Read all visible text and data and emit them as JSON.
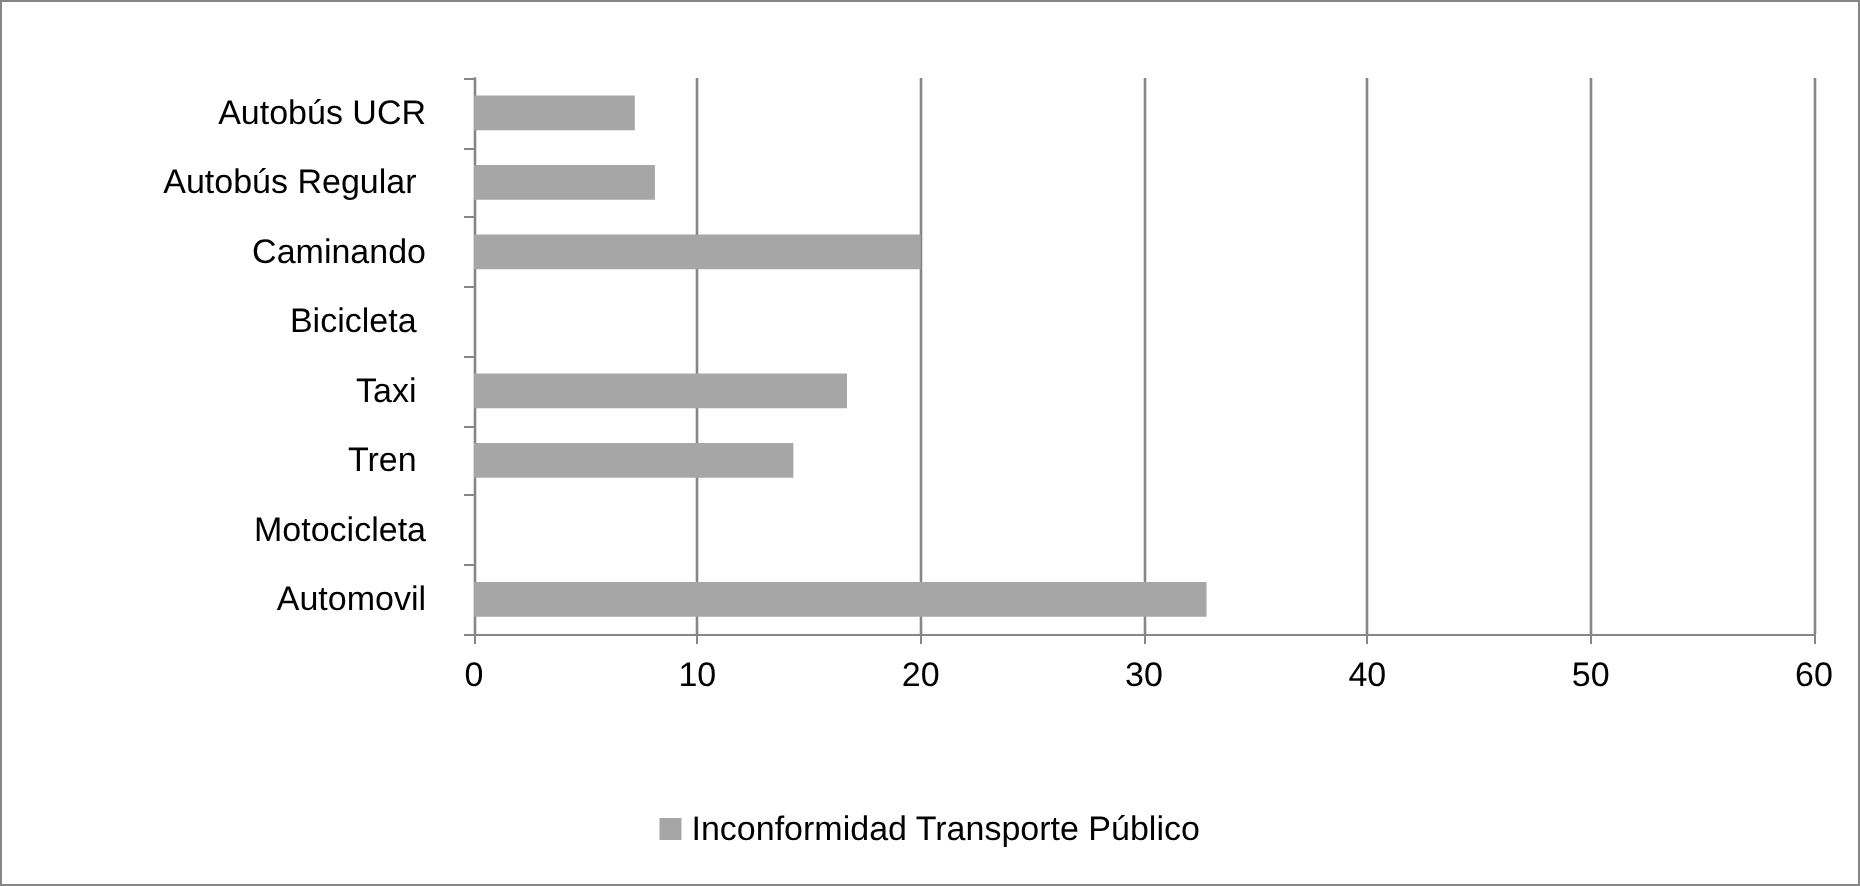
{
  "chart_data": {
    "type": "bar",
    "orientation": "horizontal",
    "categories": [
      "Autobús UCR",
      "Autobús Regular ",
      "Caminando",
      "Bicicleta ",
      "Taxi ",
      "Tren ",
      "Motocicleta",
      "Automovil"
    ],
    "series": [
      {
        "name": "Inconformidad Transporte Público",
        "color": "#a6a6a6",
        "values": [
          7.2,
          8.1,
          20,
          0,
          16.7,
          14.3,
          0,
          32.8
        ]
      }
    ],
    "xlim": [
      0,
      60
    ],
    "xticks": [
      0,
      10,
      20,
      30,
      40,
      50,
      60
    ],
    "grid": "x",
    "legend": "bottom"
  }
}
